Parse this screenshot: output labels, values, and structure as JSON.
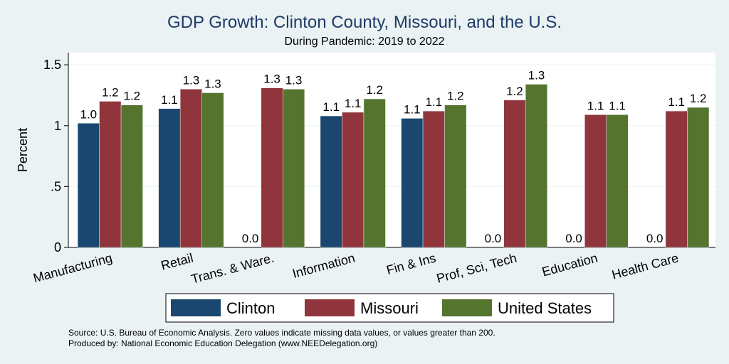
{
  "chart_data": {
    "type": "bar",
    "title": "GDP Growth: Clinton County, Missouri, and the U.S.",
    "subtitle": "During Pandemic: 2019 to 2022",
    "ylabel": "Percent",
    "xlabel": "",
    "ylim": [
      0,
      1.6
    ],
    "yticks": [
      {
        "value": 0,
        "label": "0"
      },
      {
        "value": 0.5,
        "label": ".5"
      },
      {
        "value": 1,
        "label": "1"
      },
      {
        "value": 1.5,
        "label": "1.5"
      }
    ],
    "grid": true,
    "legend_position": "bottom",
    "categories": [
      "Manufacturing",
      "Retail",
      "Trans. & Ware.",
      "Information",
      "Fin & Ins",
      "Prof, Sci, Tech",
      "Education",
      "Health Care"
    ],
    "series": [
      {
        "name": "Clinton",
        "color": "#1a476f",
        "values": [
          1.02,
          1.14,
          0,
          1.08,
          1.06,
          0,
          0,
          0
        ],
        "labels": [
          "1.0",
          "1.1",
          "0.0",
          "1.1",
          "1.1",
          "0.0",
          "0.0",
          "0.0"
        ]
      },
      {
        "name": "Missouri",
        "color": "#90353b",
        "values": [
          1.2,
          1.3,
          1.31,
          1.11,
          1.12,
          1.21,
          1.09,
          1.12
        ],
        "labels": [
          "1.2",
          "1.3",
          "1.3",
          "1.1",
          "1.1",
          "1.2",
          "1.1",
          "1.1"
        ]
      },
      {
        "name": "United States",
        "color": "#55752f",
        "values": [
          1.17,
          1.27,
          1.3,
          1.22,
          1.17,
          1.34,
          1.09,
          1.15
        ],
        "labels": [
          "1.2",
          "1.3",
          "1.3",
          "1.2",
          "1.2",
          "1.3",
          "1.1",
          "1.2"
        ]
      }
    ]
  },
  "notes": {
    "source": "Source: U.S. Bureau of Economic Analysis. Zero values indicate missing data values, or values greater than 200.",
    "producer": "Produced by: National Economic Education Delegation (www.NEEDelegation.org)"
  }
}
